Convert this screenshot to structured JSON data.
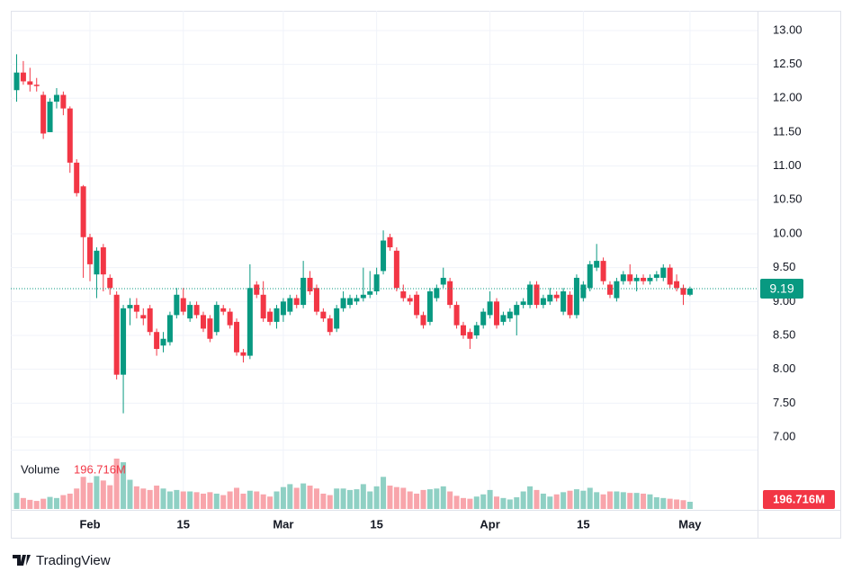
{
  "chart_data": {
    "type": "candlestick",
    "categories": [
      null,
      null,
      null,
      null,
      null,
      null,
      null,
      null,
      null,
      null,
      null,
      "Feb",
      null,
      null,
      null,
      null,
      null,
      null,
      null,
      null,
      null,
      null,
      null,
      null,
      null,
      "15",
      null,
      null,
      null,
      null,
      null,
      null,
      null,
      null,
      null,
      null,
      null,
      null,
      null,
      null,
      "Mar",
      null,
      null,
      null,
      null,
      null,
      null,
      null,
      null,
      null,
      null,
      null,
      null,
      null,
      "15",
      null,
      null,
      null,
      null,
      null,
      null,
      null,
      null,
      null,
      null,
      null,
      null,
      null,
      null,
      null,
      null,
      "Apr",
      null,
      null,
      null,
      null,
      null,
      null,
      null,
      null,
      null,
      null,
      null,
      null,
      null,
      "15",
      null,
      null,
      null,
      null,
      null,
      null,
      null,
      null,
      null,
      null,
      null,
      null,
      null,
      null,
      null,
      "May"
    ],
    "open": [
      12.12,
      12.38,
      12.25,
      12.2,
      12.05,
      11.5,
      11.95,
      12.05,
      11.85,
      11.05,
      10.7,
      9.95,
      9.4,
      9.8,
      9.35,
      9.1,
      7.92,
      8.9,
      8.95,
      8.8,
      8.9,
      8.55,
      8.35,
      8.4,
      8.8,
      9.05,
      8.75,
      8.95,
      8.8,
      8.75,
      8.55,
      8.9,
      8.85,
      8.7,
      8.25,
      8.2,
      9.25,
      9.1,
      8.85,
      8.7,
      8.8,
      8.85,
      9.05,
      8.95,
      9.35,
      9.2,
      8.85,
      8.75,
      8.6,
      8.9,
      8.95,
      9.0,
      9.05,
      9.1,
      9.15,
      9.45,
      9.95,
      9.75,
      9.15,
      9.05,
      9.1,
      8.8,
      8.7,
      9.05,
      9.25,
      9.3,
      8.95,
      8.65,
      8.55,
      8.5,
      8.65,
      8.8,
      9.0,
      8.7,
      8.75,
      8.8,
      8.95,
      8.95,
      9.25,
      8.95,
      9.0,
      9.1,
      8.85,
      9.1,
      8.8,
      9.05,
      9.2,
      9.5,
      9.6,
      9.25,
      9.05,
      9.3,
      9.4,
      9.3,
      9.35,
      9.3,
      9.35,
      9.35,
      9.5,
      9.3,
      9.2,
      9.1
    ],
    "high": [
      12.65,
      12.55,
      12.45,
      12.3,
      12.1,
      12.0,
      12.15,
      12.1,
      11.88,
      11.1,
      10.72,
      10.0,
      9.8,
      9.85,
      9.4,
      9.15,
      8.95,
      9.05,
      9.05,
      8.9,
      8.95,
      8.6,
      8.55,
      8.85,
      9.2,
      9.2,
      9.0,
      9.0,
      8.85,
      8.8,
      9.0,
      8.95,
      8.9,
      8.75,
      8.3,
      9.55,
      9.3,
      9.3,
      8.9,
      8.95,
      9.05,
      9.1,
      9.1,
      9.6,
      9.45,
      9.25,
      8.9,
      8.8,
      8.95,
      9.15,
      9.1,
      9.1,
      9.5,
      9.45,
      9.5,
      10.05,
      10.0,
      9.8,
      9.25,
      9.1,
      9.15,
      8.85,
      9.2,
      9.25,
      9.5,
      9.35,
      9.0,
      8.7,
      8.6,
      8.7,
      8.9,
      9.15,
      9.05,
      8.85,
      8.9,
      9.0,
      9.05,
      9.3,
      9.3,
      9.1,
      9.2,
      9.15,
      9.2,
      9.15,
      9.4,
      9.3,
      9.6,
      9.85,
      9.65,
      9.3,
      9.35,
      9.45,
      9.55,
      9.4,
      9.4,
      9.4,
      9.45,
      9.55,
      9.55,
      9.4,
      9.25,
      9.22
    ],
    "low": [
      11.95,
      12.2,
      12.1,
      12.1,
      11.4,
      11.5,
      11.85,
      11.75,
      10.9,
      10.55,
      9.35,
      9.3,
      9.05,
      9.15,
      9.1,
      7.85,
      7.35,
      8.65,
      8.75,
      8.65,
      8.5,
      8.2,
      8.25,
      8.35,
      8.75,
      8.8,
      8.7,
      8.75,
      8.55,
      8.4,
      8.5,
      8.8,
      8.6,
      8.2,
      8.1,
      8.15,
      9.05,
      8.7,
      8.65,
      8.6,
      8.7,
      8.8,
      8.9,
      8.9,
      9.1,
      8.8,
      8.7,
      8.5,
      8.55,
      8.85,
      8.9,
      8.95,
      9.0,
      9.05,
      9.1,
      9.4,
      9.75,
      9.15,
      9.0,
      8.95,
      8.75,
      8.6,
      8.65,
      9.0,
      9.2,
      8.9,
      8.6,
      8.45,
      8.3,
      8.45,
      8.6,
      8.75,
      8.6,
      8.65,
      8.7,
      8.5,
      8.9,
      8.9,
      8.9,
      8.9,
      8.95,
      9.0,
      8.8,
      8.75,
      8.75,
      9.0,
      9.15,
      9.45,
      9.25,
      9.05,
      9.0,
      9.25,
      9.25,
      9.15,
      9.25,
      9.25,
      9.3,
      9.3,
      9.2,
      9.15,
      8.95,
      9.08
    ],
    "close": [
      12.38,
      12.25,
      12.2,
      12.18,
      11.48,
      11.95,
      12.05,
      11.85,
      11.05,
      10.6,
      9.95,
      9.55,
      9.75,
      9.4,
      9.2,
      7.92,
      8.9,
      8.95,
      8.85,
      8.75,
      8.55,
      8.3,
      8.45,
      8.8,
      9.1,
      8.85,
      8.95,
      8.8,
      8.6,
      8.45,
      8.95,
      8.85,
      8.65,
      8.25,
      8.2,
      9.2,
      9.1,
      8.75,
      8.7,
      8.9,
      9.0,
      9.05,
      8.95,
      9.35,
      9.15,
      8.85,
      8.75,
      8.55,
      8.9,
      9.05,
      9.05,
      9.05,
      9.1,
      9.15,
      9.4,
      9.9,
      9.8,
      9.2,
      9.05,
      9.0,
      8.8,
      8.65,
      9.15,
      9.2,
      9.35,
      8.95,
      8.65,
      8.5,
      8.45,
      8.65,
      8.85,
      9.0,
      8.65,
      8.8,
      8.85,
      8.95,
      9.0,
      9.25,
      8.95,
      9.05,
      9.1,
      9.05,
      9.15,
      8.8,
      9.35,
      9.25,
      9.55,
      9.6,
      9.3,
      9.1,
      9.3,
      9.4,
      9.3,
      9.35,
      9.3,
      9.35,
      9.4,
      9.5,
      9.25,
      9.2,
      9.1,
      9.19
    ],
    "volume": [
      440000000,
      300000000,
      250000000,
      220000000,
      280000000,
      330000000,
      300000000,
      380000000,
      420000000,
      560000000,
      880000000,
      720000000,
      900000000,
      780000000,
      650000000,
      1380000000,
      1280000000,
      800000000,
      620000000,
      560000000,
      520000000,
      640000000,
      560000000,
      480000000,
      520000000,
      480000000,
      480000000,
      460000000,
      420000000,
      460000000,
      420000000,
      380000000,
      480000000,
      580000000,
      420000000,
      500000000,
      480000000,
      400000000,
      340000000,
      480000000,
      600000000,
      680000000,
      580000000,
      700000000,
      640000000,
      560000000,
      420000000,
      380000000,
      560000000,
      560000000,
      520000000,
      540000000,
      680000000,
      480000000,
      620000000,
      880000000,
      640000000,
      600000000,
      580000000,
      480000000,
      420000000,
      520000000,
      540000000,
      560000000,
      620000000,
      480000000,
      360000000,
      300000000,
      280000000,
      340000000,
      400000000,
      520000000,
      340000000,
      300000000,
      260000000,
      320000000,
      480000000,
      620000000,
      520000000,
      420000000,
      340000000,
      400000000,
      460000000,
      500000000,
      540000000,
      500000000,
      580000000,
      460000000,
      400000000,
      480000000,
      480000000,
      460000000,
      440000000,
      440000000,
      420000000,
      400000000,
      320000000,
      300000000,
      280000000,
      260000000,
      240000000,
      196716000
    ],
    "volume_title": "Volume",
    "volume_value_label": "196.716M",
    "up_color": "#089981",
    "down_color": "#f23645",
    "up_volume_color": "#8fd0c4",
    "down_volume_color": "#f8a5ab",
    "ylim": [
      6.814,
      13.265
    ],
    "yticks": [
      {
        "value": 7,
        "label": "7.00"
      },
      {
        "value": 7.5,
        "label": "7.50"
      },
      {
        "value": 8,
        "label": "8.00"
      },
      {
        "value": 8.5,
        "label": "8.50"
      },
      {
        "value": 9,
        "label": "9.00"
      },
      {
        "value": 9.5,
        "label": "9.50"
      },
      {
        "value": 10,
        "label": "10.00"
      },
      {
        "value": 10.5,
        "label": "10.50"
      },
      {
        "value": 11,
        "label": "11.00"
      },
      {
        "value": 11.5,
        "label": "11.50"
      },
      {
        "value": 12,
        "label": "12.00"
      },
      {
        "value": 12.5,
        "label": "12.50"
      },
      {
        "value": 13,
        "label": "13.00"
      }
    ],
    "grid": true
  },
  "branding": "TradingView"
}
